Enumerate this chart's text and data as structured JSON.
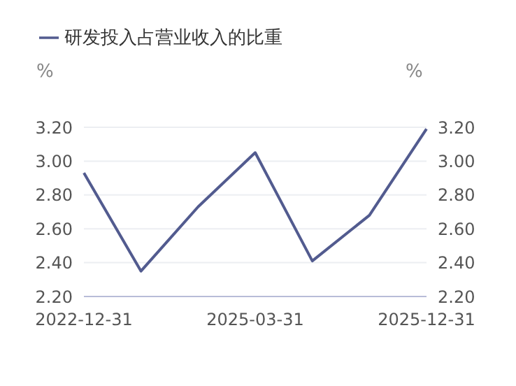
{
  "chart_data": {
    "type": "line",
    "categories": [
      "2022-12-31",
      null,
      null,
      "2025-03-31",
      null,
      null,
      "2025-12-31"
    ],
    "series": [
      {
        "name": "研发投入占营业收入的比重",
        "color": "#525b8f",
        "values": [
          2.93,
          2.35,
          2.73,
          3.05,
          2.41,
          2.68,
          3.19
        ]
      }
    ],
    "ylabel": "%",
    "y2label": "%",
    "ylim": [
      2.2,
      3.2
    ],
    "yticks": [
      {
        "value": 2.2,
        "label": "2.20"
      },
      {
        "value": 2.4,
        "label": "2.40"
      },
      {
        "value": 2.6,
        "label": "2.60"
      },
      {
        "value": 2.8,
        "label": "2.80"
      },
      {
        "value": 3.0,
        "label": "3.00"
      },
      {
        "value": 3.2,
        "label": "3.20"
      }
    ],
    "y2lim": [
      2.2,
      3.2
    ],
    "y2ticks": [
      {
        "value": 2.2,
        "label": "2.20"
      },
      {
        "value": 2.4,
        "label": "2.40"
      },
      {
        "value": 2.6,
        "label": "2.60"
      },
      {
        "value": 2.8,
        "label": "2.80"
      },
      {
        "value": 3.0,
        "label": "3.00"
      },
      {
        "value": 3.2,
        "label": "3.20"
      }
    ],
    "grid": "y",
    "legend": "top left",
    "marker": "none",
    "line_style": "solid"
  }
}
